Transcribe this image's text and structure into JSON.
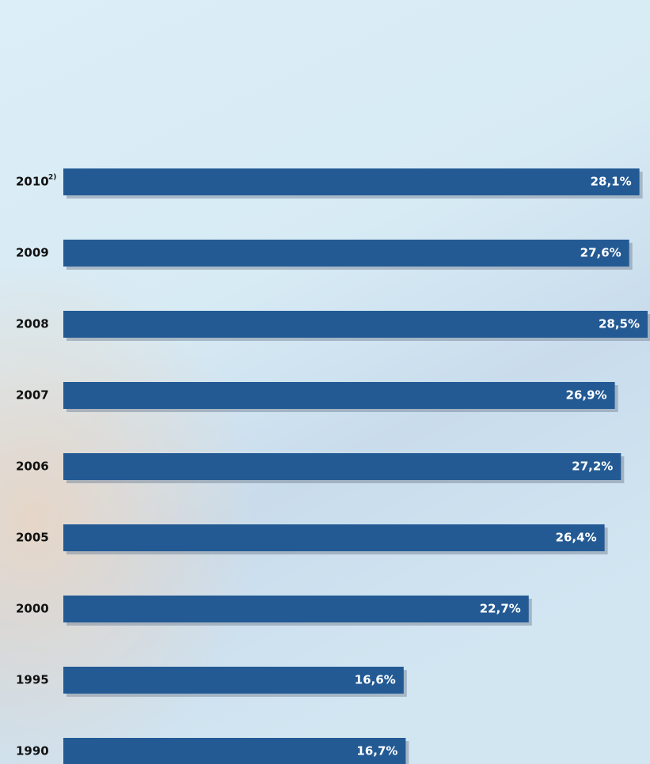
{
  "chart_data": {
    "type": "hbar",
    "categories": [
      "2010",
      "2009",
      "2008",
      "2007",
      "2006",
      "2005",
      "2000",
      "1995",
      "1990"
    ],
    "category_footnotes": [
      "2)",
      null,
      null,
      null,
      null,
      null,
      null,
      null,
      null
    ],
    "values": [
      28.1,
      27.6,
      28.5,
      26.9,
      27.2,
      26.4,
      22.7,
      16.6,
      16.7
    ],
    "value_labels": [
      "28,1%",
      "27,6%",
      "28,5%",
      "26,9%",
      "27,2%",
      "26,4%",
      "22,7%",
      "16,6%",
      "16,7%"
    ],
    "color": "#235a94"
  }
}
